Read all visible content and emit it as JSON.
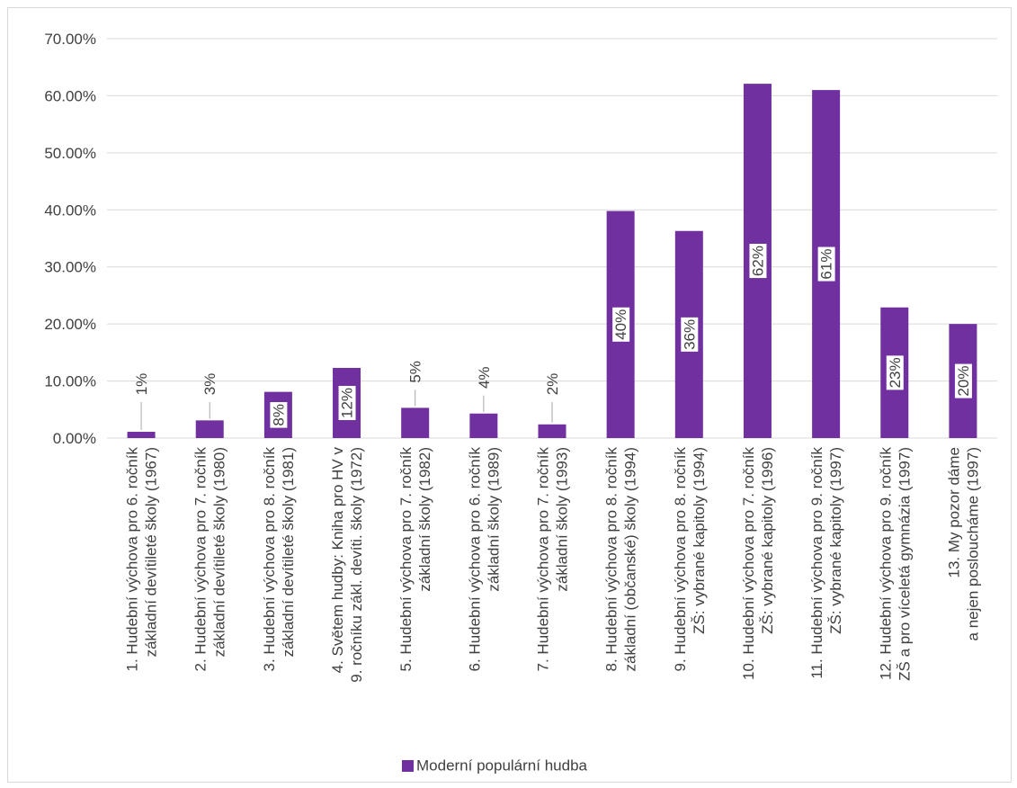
{
  "chart_data": {
    "type": "bar",
    "categories": [
      [
        "1. Hudební výchova pro 6. ročník",
        "základní devítileté školy (1967)"
      ],
      [
        "2. Hudební výchova pro 7. ročník",
        "základní devítileté školy (1980)"
      ],
      [
        "3. Hudební výchova pro 8. ročník",
        "základní devítileté školy (1981)"
      ],
      [
        "4. Světem hudby: Kniha pro HV v",
        "9. ročníku zákl. devíti. školy (1972)"
      ],
      [
        "5. Hudební výchova pro 7. ročník",
        "základní školy (1982)"
      ],
      [
        "6. Hudební výchova pro 6. ročník",
        "základní školy (1989)"
      ],
      [
        "7. Hudební výchova pro 7. ročník",
        "základní školy (1993)"
      ],
      [
        "8. Hudební výchova pro 8. ročník",
        "základní (občanské) školy (1994)"
      ],
      [
        "9. Hudební výchova pro 8. ročník",
        "ZŠ: vybrané kapitoly (1994)"
      ],
      [
        "10. Hudební výchova pro 7. ročník",
        "ZŠ: vybrané kapitoly (1996)"
      ],
      [
        "11. Hudební výchova pro 9. ročník",
        "ZŠ: vybrané kapitoly (1997)"
      ],
      [
        "12. Hudební výchova pro 9. ročník",
        "ZŠ a pro víceletá gymnázia (1997)"
      ],
      [
        "13. My pozor dáme",
        "a nejen posloucháme (1997)"
      ]
    ],
    "series": [
      {
        "name": "Moderní populární hudba",
        "values": [
          0.011,
          0.031,
          0.081,
          0.123,
          0.053,
          0.043,
          0.024,
          0.398,
          0.363,
          0.621,
          0.61,
          0.229,
          0.2
        ],
        "labels": [
          "1%",
          "3%",
          "8%",
          "12%",
          "5%",
          "4%",
          "2%",
          "40%",
          "36%",
          "62%",
          "61%",
          "23%",
          "20%"
        ],
        "label_position": [
          "outside",
          "outside",
          "inside",
          "inside",
          "outside",
          "outside",
          "outside",
          "inside",
          "inside",
          "inside",
          "inside",
          "inside",
          "inside"
        ]
      }
    ],
    "y_ticks": [
      "0.00%",
      "10.00%",
      "20.00%",
      "30.00%",
      "40.00%",
      "50.00%",
      "60.00%",
      "70.00%"
    ],
    "ylim": [
      0,
      0.7
    ],
    "grid": true,
    "legend_position": "bottom",
    "title": "",
    "xlabel": "",
    "ylabel": "",
    "bar_color": "#7030a0",
    "grid_color": "#d9d9d9",
    "text_color": "#404040"
  }
}
